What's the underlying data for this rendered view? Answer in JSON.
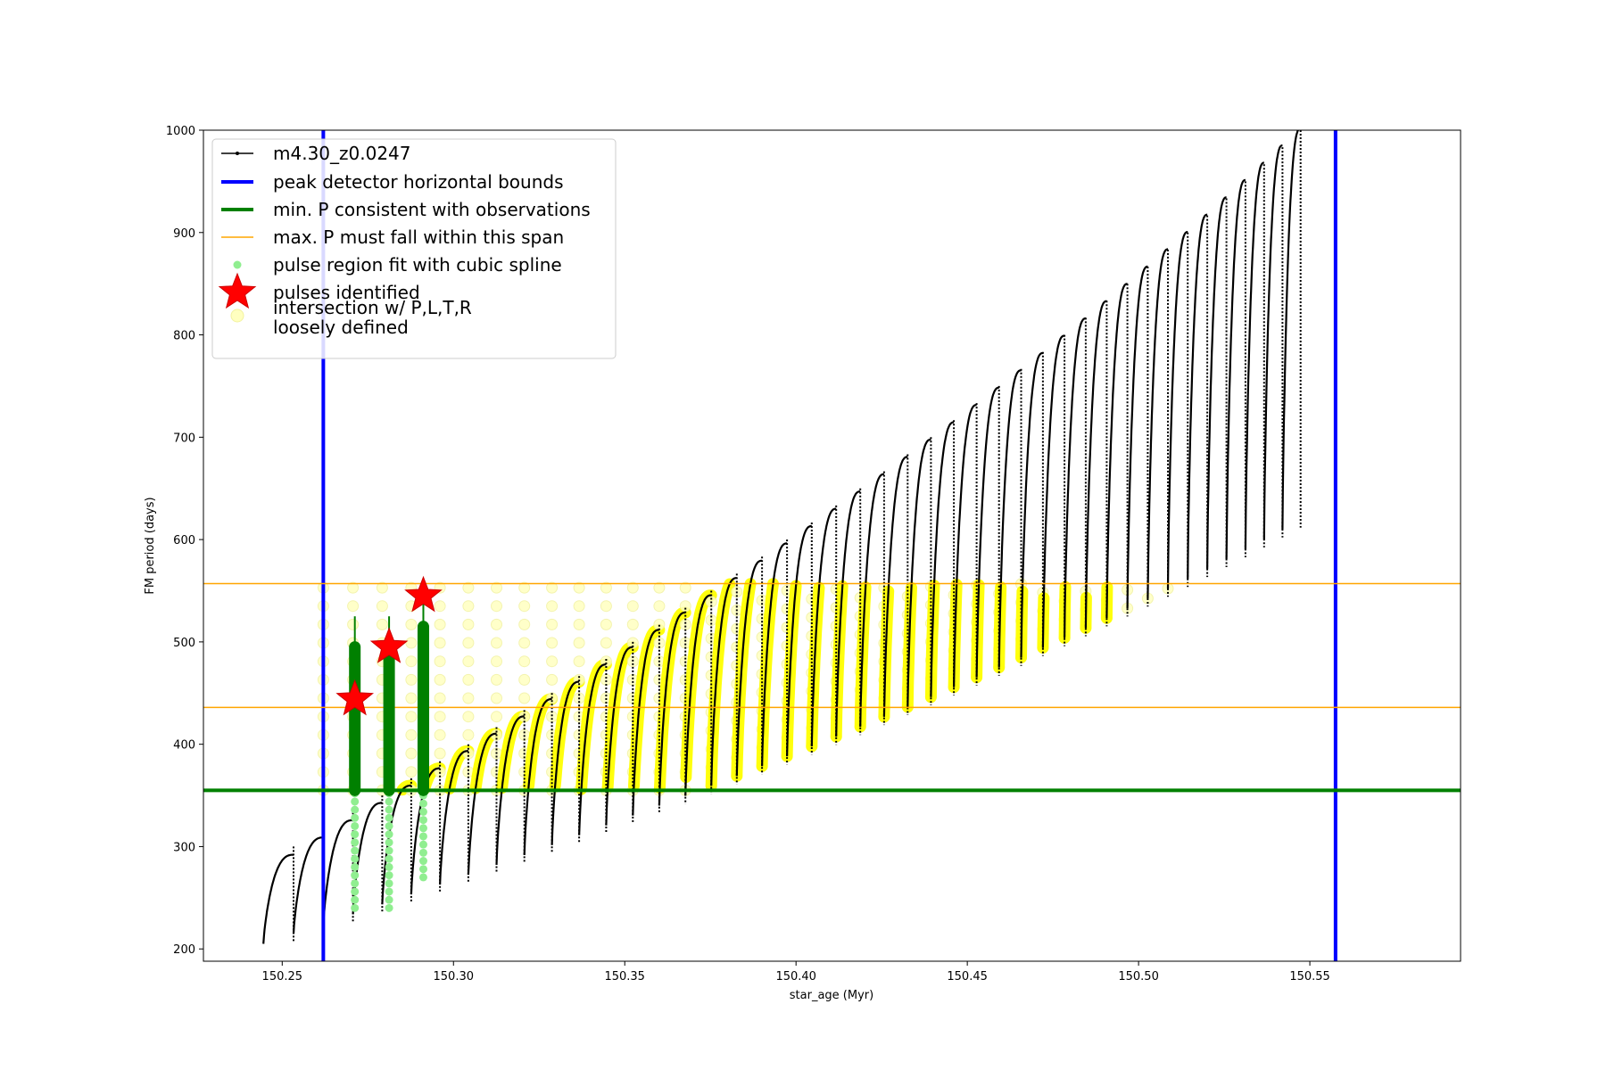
{
  "chart_data": {
    "type": "line",
    "xlabel": "star_age (Myr)",
    "ylabel": "FM period (days)",
    "xlim": [
      150.227,
      150.594
    ],
    "ylim": [
      188,
      1000
    ],
    "xticks": [
      150.25,
      150.3,
      150.35,
      150.4,
      150.45,
      150.5,
      150.55
    ],
    "xtick_labels": [
      "150.25",
      "150.30",
      "150.35",
      "150.40",
      "150.45",
      "150.50",
      "150.55"
    ],
    "yticks": [
      200,
      300,
      400,
      500,
      600,
      700,
      800,
      900,
      1000
    ],
    "ytick_labels": [
      "200",
      "300",
      "400",
      "500",
      "600",
      "700",
      "800",
      "900",
      "1000"
    ],
    "grid": false,
    "legend_position": "top-left",
    "legend": [
      {
        "label": "m4.30_z0.0247",
        "marker": "line-dot",
        "color": "#000000"
      },
      {
        "label": "peak detector horizontal bounds",
        "marker": "thick-line",
        "color": "#0000ff"
      },
      {
        "label": "min. P consistent with observations",
        "marker": "thick-line",
        "color": "#008000"
      },
      {
        "label": "max. P must fall within this span",
        "marker": "thin-line",
        "color": "#ffa500"
      },
      {
        "label": "pulse region fit with cubic spline",
        "marker": "dot",
        "color": "#90ee90"
      },
      {
        "label": "pulses identified",
        "marker": "star",
        "color": "#ff0000"
      },
      {
        "label": "intersection w/ P,L,T,R\nloosely defined",
        "marker": "circle",
        "color": "#ffffc0"
      }
    ],
    "vertical_bounds": {
      "x": [
        150.262,
        150.5575
      ],
      "color": "#0000ff"
    },
    "min_period_line": {
      "y": 355,
      "color": "#008000"
    },
    "max_period_span": {
      "y": [
        436,
        557
      ],
      "color": "#ffa500"
    },
    "pulse_series": {
      "name": "m4.30_z0.0247",
      "color": "#000000",
      "x_start": 150.2445,
      "spacing_start": 0.0088,
      "spacing_end": 0.0052,
      "count": 44,
      "base_start": 205,
      "base_end": 610,
      "peak_start": 292,
      "peak_end": 1002,
      "spike_start": 300,
      "spike_end": 1000
    },
    "pulses_identified": [
      {
        "x": 150.2712,
        "y": 444
      },
      {
        "x": 150.2812,
        "y": 495
      },
      {
        "x": 150.2912,
        "y": 545
      }
    ],
    "spline_fit_pulses": [
      {
        "x": 150.2712,
        "ymin": 240,
        "ymax": 525
      },
      {
        "x": 150.2812,
        "ymin": 240,
        "ymax": 525
      },
      {
        "x": 150.2912,
        "ymin": 270,
        "ymax": 545
      }
    ],
    "colors": {
      "series": "#000000",
      "bounds": "#0000ff",
      "min_p": "#008000",
      "max_p": "#ffa500",
      "spline": "#90ee90",
      "spline_dark": "#008000",
      "stars": "#ff0000",
      "intersection": "#ffff00",
      "loose": "#ffffc0"
    }
  }
}
